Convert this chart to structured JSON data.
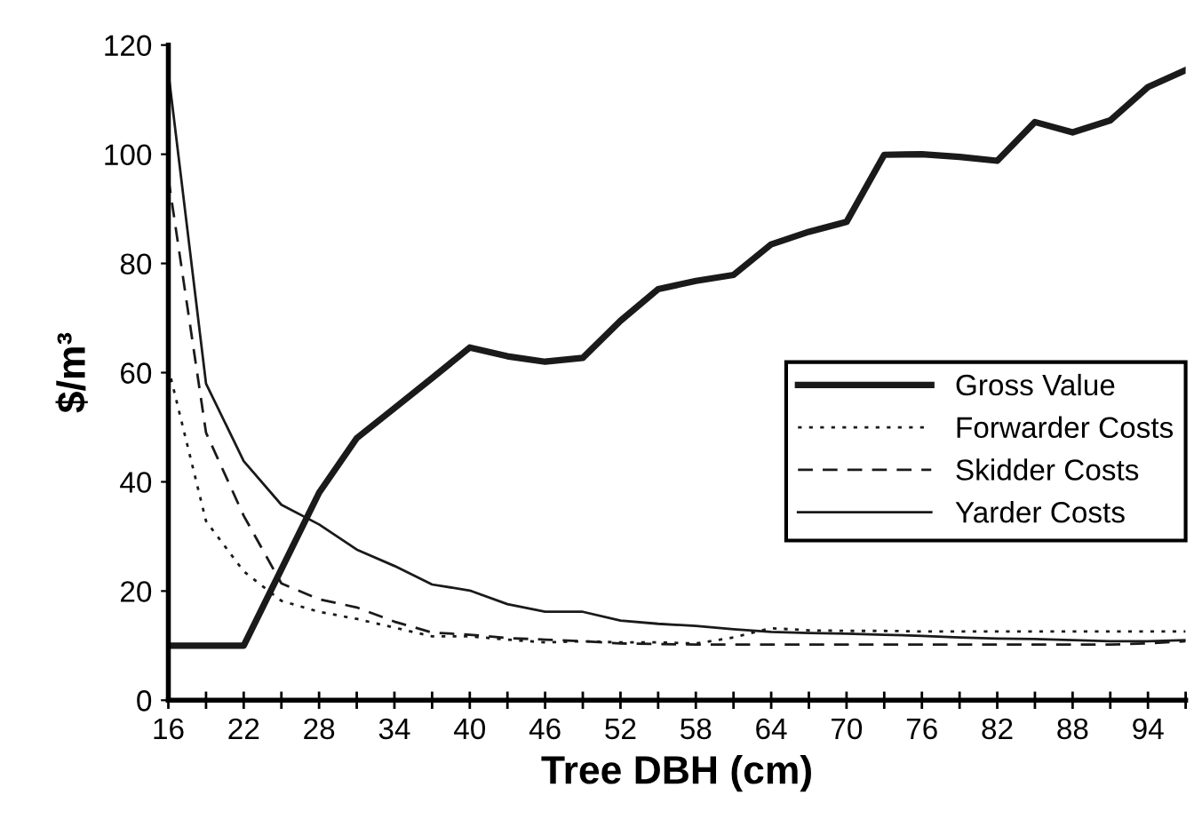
{
  "chart_data": {
    "type": "line",
    "xlabel": "Tree DBH (cm)",
    "ylabel": "$/m³",
    "x": [
      16,
      19,
      22,
      25,
      28,
      31,
      34,
      37,
      40,
      43,
      46,
      49,
      52,
      55,
      58,
      61,
      64,
      67,
      70,
      73,
      76,
      79,
      82,
      85,
      88,
      91,
      94,
      97
    ],
    "xlim": [
      16,
      97
    ],
    "xticks": [
      16,
      {
        "value": 19,
        "label": null
      },
      22,
      {
        "value": 25,
        "label": null
      },
      28,
      {
        "value": 31,
        "label": null
      },
      34,
      {
        "value": 37,
        "label": null
      },
      40,
      {
        "value": 43,
        "label": null
      },
      46,
      {
        "value": 49,
        "label": null
      },
      52,
      {
        "value": 55,
        "label": null
      },
      58,
      {
        "value": 61,
        "label": null
      },
      64,
      {
        "value": 67,
        "label": null
      },
      70,
      {
        "value": 73,
        "label": null
      },
      76,
      {
        "value": 79,
        "label": null
      },
      82,
      {
        "value": 85,
        "label": null
      },
      88,
      {
        "value": 91,
        "label": null
      },
      94,
      {
        "value": 97,
        "label": null
      }
    ],
    "ylim": [
      0,
      120
    ],
    "yticks": [
      0,
      20,
      40,
      60,
      80,
      100,
      120
    ],
    "grid": false,
    "legend": "right",
    "marker": "none",
    "series": [
      {
        "name": "Gross Value",
        "color": "#1a1a1a",
        "line_style": "solid",
        "values": [
          10,
          10,
          10,
          24,
          38,
          48,
          53.5,
          59,
          64.6,
          63,
          62,
          62.7,
          69.5,
          75.3,
          76.8,
          77.9,
          83.5,
          85.8,
          87.6,
          99.9,
          100,
          99.5,
          98.8,
          105.9,
          104,
          106.2,
          112.3,
          115.4
        ]
      },
      {
        "name": "Forwarder Costs",
        "color": "#1a1a1a",
        "line_style": "dotted",
        "values": [
          60.9,
          32.8,
          23.6,
          18.2,
          16.2,
          14.9,
          13.3,
          11.7,
          11.7,
          11.1,
          10.6,
          10.8,
          10.6,
          10.6,
          10.4,
          11.5,
          13.2,
          12.8,
          12.7,
          12.7,
          12.6,
          12.6,
          12.6,
          12.6,
          12.6,
          12.6,
          12.6,
          12.6
        ]
      },
      {
        "name": "Skidder Costs",
        "color": "#1a1a1a",
        "line_style": "dashed",
        "values": [
          95.6,
          49,
          33.8,
          21.4,
          18.5,
          17,
          14.4,
          12.4,
          12,
          11.4,
          11.1,
          10.8,
          10.4,
          10.3,
          10.2,
          10.2,
          10.2,
          10.2,
          10.2,
          10.2,
          10.2,
          10.2,
          10.2,
          10.2,
          10.2,
          10.2,
          10.4,
          10.8
        ]
      },
      {
        "name": "Yarder Costs",
        "color": "#1a1a1a",
        "line_style": "solid",
        "values": [
          115,
          58,
          43.8,
          35.8,
          32.2,
          27.6,
          24.6,
          21.2,
          20.1,
          17.6,
          16.2,
          16.2,
          14.6,
          14,
          13.6,
          13,
          12.5,
          12.3,
          12.2,
          12,
          11.8,
          11.5,
          11.3,
          11.2,
          11,
          10.8,
          10.8,
          11
        ]
      }
    ]
  }
}
